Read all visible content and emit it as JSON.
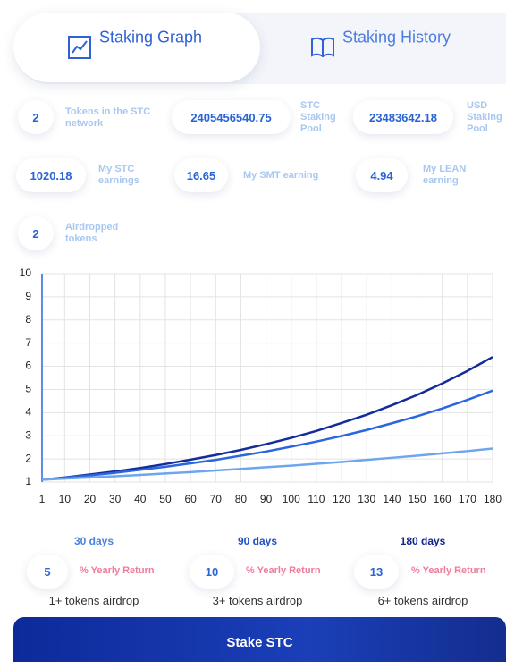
{
  "tabs": [
    {
      "label": "Staking Graph"
    },
    {
      "label": "Staking History"
    }
  ],
  "stats": [
    {
      "value": 2,
      "label": "Tokens in the STC network"
    },
    {
      "value": 2405456540.75,
      "label": "STC Staking Pool"
    },
    {
      "value": 23483642.18,
      "label": "USD Staking Pool"
    },
    {
      "value": 1020.18,
      "label": "My STC earnings"
    },
    {
      "value": 16.65,
      "label": "My SMT earning"
    },
    {
      "value": 4.94,
      "label": "My LEAN earning"
    },
    {
      "value": 2,
      "label": "Airdropped tokens"
    }
  ],
  "chart_data": {
    "type": "line",
    "x": [
      1,
      10,
      20,
      30,
      40,
      50,
      60,
      70,
      80,
      90,
      100,
      110,
      120,
      130,
      140,
      150,
      160,
      170,
      180
    ],
    "series": [
      {
        "color": "#142c9a",
        "values": [
          1.1,
          1.2,
          1.33,
          1.46,
          1.61,
          1.78,
          1.97,
          2.17,
          2.39,
          2.64,
          2.91,
          3.21,
          3.55,
          3.91,
          4.32,
          4.76,
          5.26,
          5.8,
          6.4
        ]
      },
      {
        "color": "#2a66dd",
        "values": [
          1.1,
          1.19,
          1.29,
          1.4,
          1.53,
          1.66,
          1.81,
          1.96,
          2.14,
          2.32,
          2.53,
          2.75,
          2.99,
          3.25,
          3.54,
          3.84,
          4.18,
          4.55,
          4.95
        ]
      },
      {
        "color": "#6ea6ee",
        "values": [
          1.1,
          1.15,
          1.2,
          1.25,
          1.31,
          1.37,
          1.43,
          1.5,
          1.57,
          1.64,
          1.71,
          1.79,
          1.87,
          1.96,
          2.05,
          2.14,
          2.24,
          2.34,
          2.45
        ]
      }
    ],
    "xlim": [
      1,
      180
    ],
    "xticks": [
      1,
      10,
      20,
      30,
      40,
      50,
      60,
      70,
      80,
      90,
      100,
      110,
      120,
      130,
      140,
      150,
      160,
      170,
      180
    ],
    "ylim": [
      1,
      10
    ],
    "yticks": [
      1,
      2,
      3,
      4,
      5,
      6,
      7,
      8,
      9,
      10
    ],
    "grid": true
  },
  "plans": [
    {
      "period": "30 days",
      "return": 5,
      "return_label": "% Yearly Return",
      "airdrop": "1+ tokens airdrop"
    },
    {
      "period": "90 days",
      "return": 10,
      "return_label": "% Yearly Return",
      "airdrop": "3+ tokens airdrop"
    },
    {
      "period": "180 days",
      "return": 13,
      "return_label": "% Yearly Return",
      "airdrop": "6+ tokens airdrop"
    }
  ],
  "button": "Stake STC"
}
